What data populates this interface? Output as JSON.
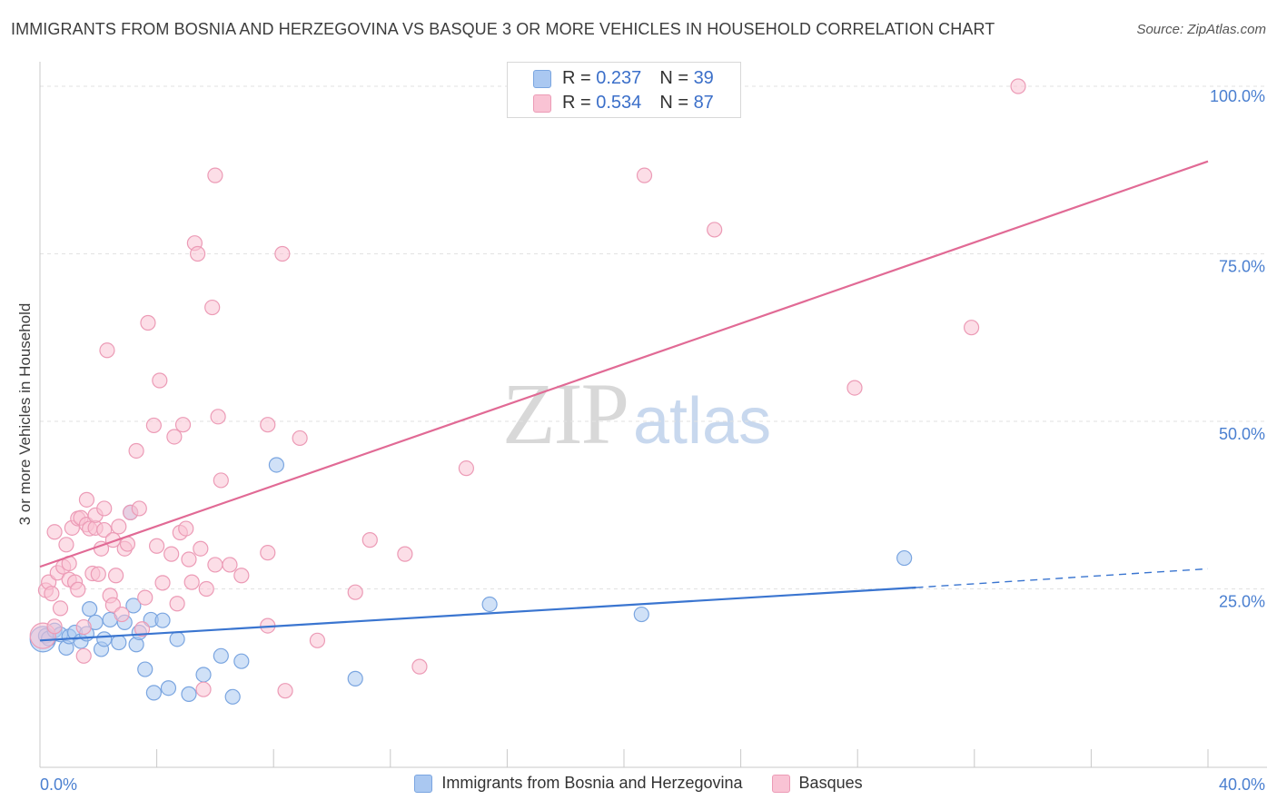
{
  "title": "IMMIGRANTS FROM BOSNIA AND HERZEGOVINA VS BASQUE 3 OR MORE VEHICLES IN HOUSEHOLD CORRELATION CHART",
  "source": "Source: ZipAtlas.com",
  "watermark": {
    "zip": "ZIP",
    "atlas": "atlas"
  },
  "legend": {
    "r_label": "R =",
    "n_label": "N =",
    "series1": {
      "r": "0.237",
      "n": "39"
    },
    "series2": {
      "r": "0.534",
      "n": "87"
    }
  },
  "colors": {
    "blue_fill": "#aac8f1",
    "blue_stroke": "#7aa5e0",
    "blue_line": "#3a75d0",
    "pink_fill": "#f9c3d4",
    "pink_stroke": "#ec9bb6",
    "pink_line": "#e16a95",
    "tick_text": "#4a7fd0",
    "grid": "#e2e2e2"
  },
  "chart_data": {
    "type": "scatter",
    "title": "IMMIGRANTS FROM BOSNIA AND HERZEGOVINA VS BASQUE 3 OR MORE VEHICLES IN HOUSEHOLD CORRELATION CHART",
    "xlabel": "",
    "ylabel": "3 or more Vehicles in Household",
    "xlim": [
      0,
      40
    ],
    "ylim": [
      0,
      100
    ],
    "x_ticks": [
      "0.0%",
      "40.0%"
    ],
    "y_ticks": [
      {
        "value": 25,
        "label": "25.0%"
      },
      {
        "value": 50,
        "label": "50.0%"
      },
      {
        "value": 75,
        "label": "75.0%"
      },
      {
        "value": 100,
        "label": "100.0%"
      }
    ],
    "series": [
      {
        "name": "Immigrants from Bosnia and Herzegovina",
        "color": "blue",
        "trend": {
          "x0": 0,
          "y0": 17.3,
          "x1": 30.0,
          "y1": 25.2,
          "dash_to_x": 40,
          "dash_to_y": 28.0
        },
        "points": [
          {
            "x": 0.1,
            "y": 17.5,
            "big": true
          },
          {
            "x": 0.2,
            "y": 18.0
          },
          {
            "x": 0.3,
            "y": 17.6
          },
          {
            "x": 0.5,
            "y": 18.8
          },
          {
            "x": 0.7,
            "y": 18.2
          },
          {
            "x": 0.9,
            "y": 16.2
          },
          {
            "x": 1.0,
            "y": 17.9
          },
          {
            "x": 1.2,
            "y": 18.5
          },
          {
            "x": 1.4,
            "y": 17.2
          },
          {
            "x": 1.6,
            "y": 18.3
          },
          {
            "x": 1.7,
            "y": 22.0
          },
          {
            "x": 1.9,
            "y": 20.0
          },
          {
            "x": 2.1,
            "y": 16.0
          },
          {
            "x": 2.2,
            "y": 17.5
          },
          {
            "x": 2.4,
            "y": 20.4
          },
          {
            "x": 2.7,
            "y": 17.0
          },
          {
            "x": 2.9,
            "y": 20.0
          },
          {
            "x": 3.1,
            "y": 36.4
          },
          {
            "x": 3.2,
            "y": 22.5
          },
          {
            "x": 3.3,
            "y": 16.7
          },
          {
            "x": 3.4,
            "y": 18.5
          },
          {
            "x": 3.6,
            "y": 13.0
          },
          {
            "x": 3.8,
            "y": 20.4
          },
          {
            "x": 3.9,
            "y": 9.5
          },
          {
            "x": 4.2,
            "y": 20.3
          },
          {
            "x": 4.4,
            "y": 10.2
          },
          {
            "x": 4.7,
            "y": 17.5
          },
          {
            "x": 5.1,
            "y": 9.3
          },
          {
            "x": 5.6,
            "y": 12.2
          },
          {
            "x": 6.2,
            "y": 15.0
          },
          {
            "x": 6.6,
            "y": 8.9
          },
          {
            "x": 6.9,
            "y": 14.2
          },
          {
            "x": 8.1,
            "y": 43.5
          },
          {
            "x": 10.8,
            "y": 11.6
          },
          {
            "x": 15.4,
            "y": 22.7
          },
          {
            "x": 20.6,
            "y": 21.2
          },
          {
            "x": 29.6,
            "y": 29.6
          }
        ]
      },
      {
        "name": "Basques",
        "color": "pink",
        "trend": {
          "x0": 0,
          "y0": 28.3,
          "x1": 40,
          "y1": 88.8
        },
        "points": [
          {
            "x": 0.1,
            "y": 18.0,
            "big": true
          },
          {
            "x": 0.2,
            "y": 24.8
          },
          {
            "x": 0.3,
            "y": 26.0
          },
          {
            "x": 0.4,
            "y": 24.3
          },
          {
            "x": 0.5,
            "y": 19.4
          },
          {
            "x": 0.5,
            "y": 33.5
          },
          {
            "x": 0.6,
            "y": 27.4
          },
          {
            "x": 0.7,
            "y": 22.1
          },
          {
            "x": 0.8,
            "y": 28.3
          },
          {
            "x": 0.9,
            "y": 31.6
          },
          {
            "x": 1.0,
            "y": 26.4
          },
          {
            "x": 1.0,
            "y": 28.8
          },
          {
            "x": 1.1,
            "y": 34.1
          },
          {
            "x": 1.2,
            "y": 26.0
          },
          {
            "x": 1.3,
            "y": 24.9
          },
          {
            "x": 1.3,
            "y": 35.5
          },
          {
            "x": 1.4,
            "y": 35.6
          },
          {
            "x": 1.5,
            "y": 19.3
          },
          {
            "x": 1.5,
            "y": 15.0
          },
          {
            "x": 1.6,
            "y": 38.3
          },
          {
            "x": 1.6,
            "y": 34.6
          },
          {
            "x": 1.7,
            "y": 34.0
          },
          {
            "x": 1.8,
            "y": 27.3
          },
          {
            "x": 1.9,
            "y": 34.1
          },
          {
            "x": 1.9,
            "y": 36.0
          },
          {
            "x": 2.0,
            "y": 27.2
          },
          {
            "x": 2.1,
            "y": 31.0
          },
          {
            "x": 2.2,
            "y": 33.8
          },
          {
            "x": 2.2,
            "y": 37.0
          },
          {
            "x": 2.3,
            "y": 60.6
          },
          {
            "x": 2.4,
            "y": 24.0
          },
          {
            "x": 2.5,
            "y": 32.3
          },
          {
            "x": 2.5,
            "y": 22.6
          },
          {
            "x": 2.6,
            "y": 27.0
          },
          {
            "x": 2.7,
            "y": 34.3
          },
          {
            "x": 2.8,
            "y": 21.2
          },
          {
            "x": 2.9,
            "y": 31.0
          },
          {
            "x": 3.0,
            "y": 31.7
          },
          {
            "x": 3.1,
            "y": 36.4
          },
          {
            "x": 3.3,
            "y": 45.6
          },
          {
            "x": 3.4,
            "y": 37.0
          },
          {
            "x": 3.5,
            "y": 19.0
          },
          {
            "x": 3.6,
            "y": 23.7
          },
          {
            "x": 3.7,
            "y": 64.7
          },
          {
            "x": 3.9,
            "y": 49.4
          },
          {
            "x": 4.0,
            "y": 31.4
          },
          {
            "x": 4.1,
            "y": 56.1
          },
          {
            "x": 4.2,
            "y": 25.9
          },
          {
            "x": 4.5,
            "y": 30.2
          },
          {
            "x": 4.6,
            "y": 47.7
          },
          {
            "x": 4.7,
            "y": 22.8
          },
          {
            "x": 4.8,
            "y": 33.4
          },
          {
            "x": 4.9,
            "y": 49.5
          },
          {
            "x": 5.0,
            "y": 34.0
          },
          {
            "x": 5.1,
            "y": 29.4
          },
          {
            "x": 5.2,
            "y": 26.0
          },
          {
            "x": 5.3,
            "y": 76.6
          },
          {
            "x": 5.4,
            "y": 75.0
          },
          {
            "x": 5.5,
            "y": 31.0
          },
          {
            "x": 5.6,
            "y": 10.0
          },
          {
            "x": 5.7,
            "y": 25.0
          },
          {
            "x": 5.9,
            "y": 67.0
          },
          {
            "x": 6.0,
            "y": 28.6
          },
          {
            "x": 6.0,
            "y": 86.7
          },
          {
            "x": 6.1,
            "y": 50.7
          },
          {
            "x": 6.2,
            "y": 41.2
          },
          {
            "x": 6.5,
            "y": 28.6
          },
          {
            "x": 6.9,
            "y": 27.0
          },
          {
            "x": 7.8,
            "y": 19.5
          },
          {
            "x": 7.8,
            "y": 30.4
          },
          {
            "x": 7.8,
            "y": 49.5
          },
          {
            "x": 8.3,
            "y": 75.0
          },
          {
            "x": 8.4,
            "y": 9.8
          },
          {
            "x": 8.9,
            "y": 47.5
          },
          {
            "x": 9.5,
            "y": 17.3
          },
          {
            "x": 10.8,
            "y": 24.5
          },
          {
            "x": 11.3,
            "y": 32.3
          },
          {
            "x": 12.5,
            "y": 30.2
          },
          {
            "x": 13.0,
            "y": 13.4
          },
          {
            "x": 14.6,
            "y": 43.0
          },
          {
            "x": 20.7,
            "y": 86.7
          },
          {
            "x": 23.1,
            "y": 78.6
          },
          {
            "x": 27.9,
            "y": 55.0
          },
          {
            "x": 31.9,
            "y": 64.0
          },
          {
            "x": 33.5,
            "y": 100.0
          }
        ]
      }
    ]
  }
}
